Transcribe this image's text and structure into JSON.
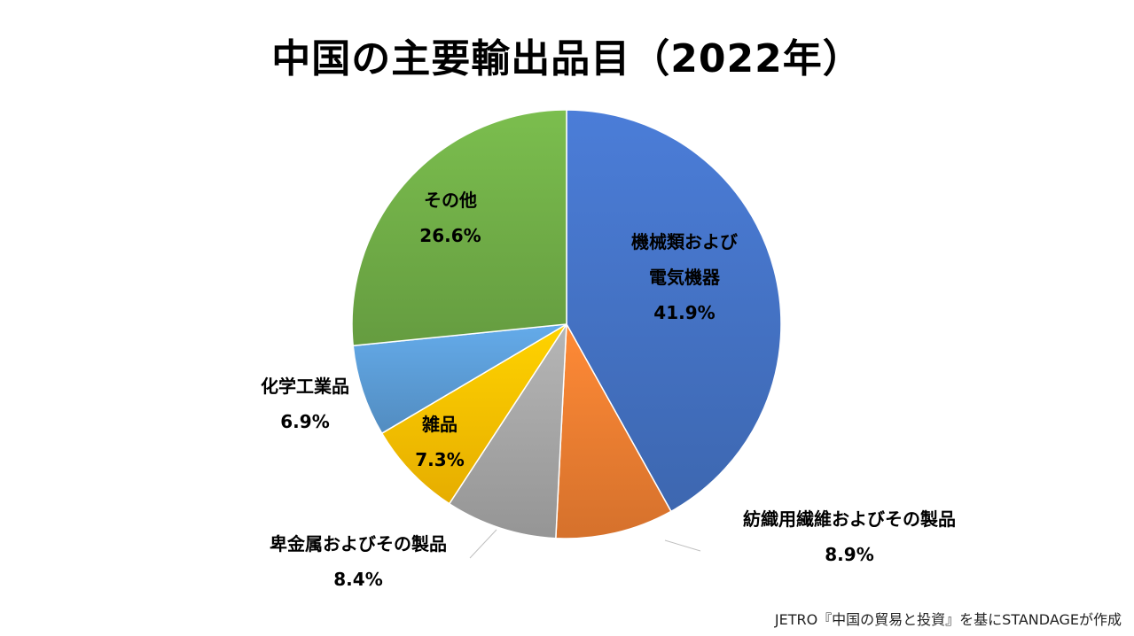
{
  "chart_data": {
    "type": "pie",
    "title": "中国の主要輸出品目（2022年）",
    "unit": "%",
    "categories": [
      "機械類および電気機器",
      "紡織用繊維およびその製品",
      "卑金属およびその製品",
      "雑品",
      "化学工業品",
      "その他"
    ],
    "values": [
      41.9,
      8.9,
      8.4,
      7.3,
      6.9,
      26.6
    ],
    "value_labels": [
      "41.9%",
      "8.9%",
      "8.4%",
      "7.3%",
      "6.9%",
      "26.6%"
    ],
    "label_lines": [
      [
        "機械類および",
        "電気機器"
      ],
      [
        "紡織用繊維およびその製品"
      ],
      [
        "卑金属およびその製品"
      ],
      [
        "雑品"
      ],
      [
        "化学工業品"
      ],
      [
        "その他"
      ]
    ],
    "colors": [
      "#4472C4",
      "#ED7D31",
      "#A5A5A5",
      "#FFC000",
      "#5B9BD5",
      "#70AD47"
    ],
    "start_angle_deg": 0,
    "direction": "clockwise",
    "legend": "none"
  },
  "source_note": "JETRO『中国の貿易と投資』を基にSTANDAGEが作成"
}
